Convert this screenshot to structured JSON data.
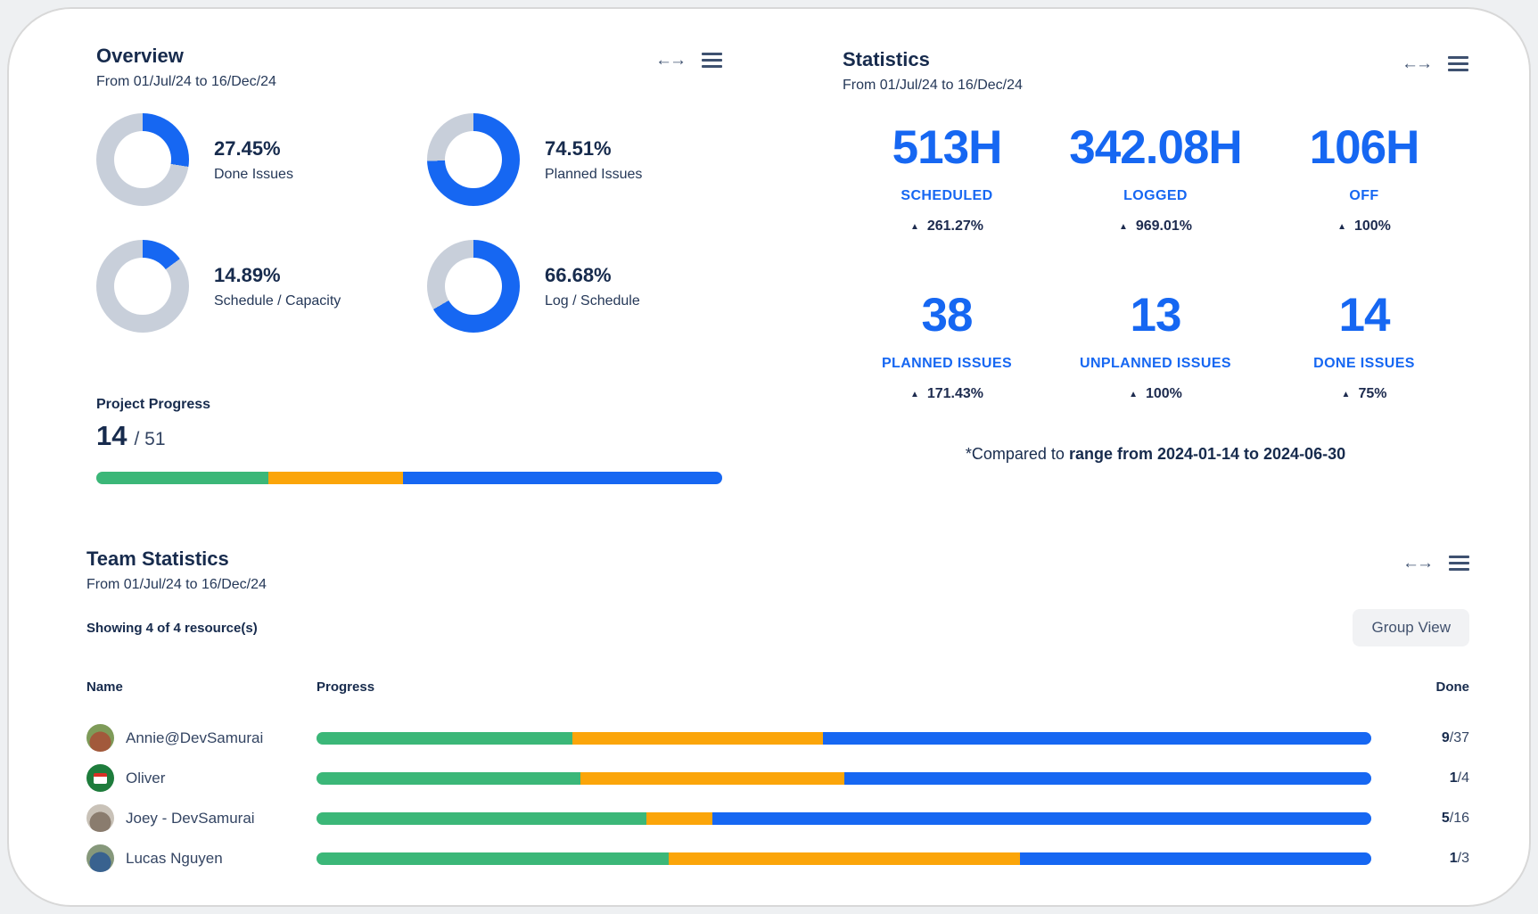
{
  "theme": {
    "blue": "#1667F2",
    "green": "#3BB778",
    "orange": "#FBA50A",
    "donut_gray": "#C8CFDA",
    "navy": "#172B4D",
    "icon_color": "#3E5170"
  },
  "overview": {
    "title": "Overview",
    "subtitle": "From 01/Jul/24 to 16/Dec/24",
    "donuts": [
      {
        "percent": 27.45,
        "value": "27.45%",
        "label": "Done Issues"
      },
      {
        "percent": 74.51,
        "value": "74.51%",
        "label": "Planned Issues"
      },
      {
        "percent": 14.89,
        "value": "14.89%",
        "label": "Schedule / Capacity"
      },
      {
        "percent": 66.68,
        "value": "66.68%",
        "label": "Log / Schedule"
      }
    ],
    "project_progress": {
      "label": "Project Progress",
      "done": "14",
      "total": "/ 51",
      "segments": [
        {
          "color": "green",
          "pct": 27.45
        },
        {
          "color": "orange",
          "pct": 21.57
        },
        {
          "color": "blue",
          "pct": 50.98
        }
      ]
    }
  },
  "statistics": {
    "title": "Statistics",
    "subtitle": "From 01/Jul/24 to 16/Dec/24",
    "stats": [
      {
        "value": "513H",
        "label": "SCHEDULED",
        "delta": "261.27%"
      },
      {
        "value": "342.08H",
        "label": "LOGGED",
        "delta": "969.01%"
      },
      {
        "value": "106H",
        "label": "OFF",
        "delta": "100%"
      },
      {
        "value": "38",
        "label": "PLANNED ISSUES",
        "delta": "171.43%"
      },
      {
        "value": "13",
        "label": "UNPLANNED ISSUES",
        "delta": "100%"
      },
      {
        "value": "14",
        "label": "DONE ISSUES",
        "delta": "75%"
      }
    ],
    "footnote_prefix": "*Compared to ",
    "footnote_bold": "range from 2024-01-14 to 2024-06-30"
  },
  "team": {
    "title": "Team Statistics",
    "subtitle": "From 01/Jul/24 to 16/Dec/24",
    "showing": "Showing 4 of 4 resource(s)",
    "group_view_label": "Group View",
    "columns": {
      "name": "Name",
      "progress": "Progress",
      "done": "Done"
    },
    "rows": [
      {
        "name": "Annie@DevSamurai",
        "done": "9",
        "total": "/37",
        "avatar": {
          "c1": "#A2593B",
          "c2": "#7E9B59"
        },
        "segments": [
          {
            "color": "green",
            "pct": 24.3
          },
          {
            "color": "orange",
            "pct": 23.7
          },
          {
            "color": "blue",
            "pct": 52.0
          }
        ]
      },
      {
        "name": "Oliver",
        "done": "1",
        "total": "/4",
        "avatar": {
          "c1": "#1E7C3C",
          "c2": "#1E7C3C"
        },
        "segments": [
          {
            "color": "green",
            "pct": 25.0
          },
          {
            "color": "orange",
            "pct": 25.0
          },
          {
            "color": "blue",
            "pct": 50.0
          }
        ]
      },
      {
        "name": "Joey - DevSamurai",
        "done": "5",
        "total": "/16",
        "avatar": {
          "c1": "#8A7C6E",
          "c2": "#C9C2B8"
        },
        "segments": [
          {
            "color": "green",
            "pct": 31.25
          },
          {
            "color": "orange",
            "pct": 6.25
          },
          {
            "color": "blue",
            "pct": 62.5
          }
        ]
      },
      {
        "name": "Lucas Nguyen",
        "done": "1",
        "total": "/3",
        "avatar": {
          "c1": "#39628F",
          "c2": "#86987B"
        },
        "segments": [
          {
            "color": "green",
            "pct": 33.4
          },
          {
            "color": "orange",
            "pct": 33.3
          },
          {
            "color": "blue",
            "pct": 33.3
          }
        ]
      }
    ]
  }
}
